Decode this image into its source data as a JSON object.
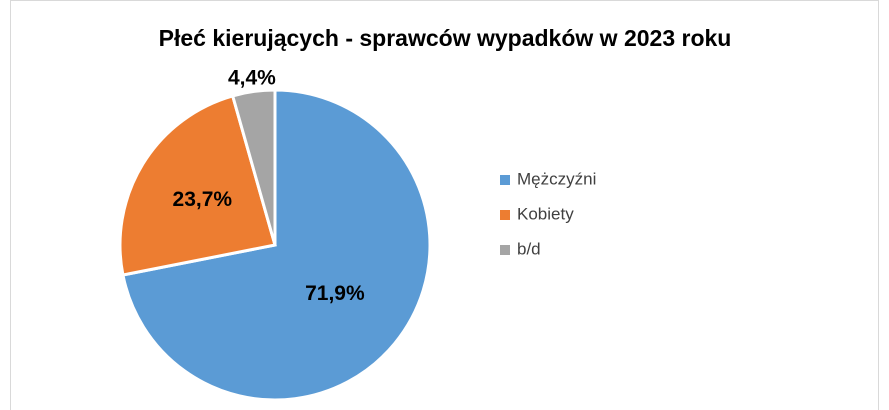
{
  "chart_data": {
    "type": "pie",
    "title": "Płeć kierujących - sprawców wypadków w 2023 roku",
    "categories": [
      "Mężczyźni",
      "Kobiety",
      "b/d"
    ],
    "values": [
      71.9,
      23.7,
      4.4
    ],
    "value_labels": [
      "71,9%",
      "23,7%",
      "4,4%"
    ],
    "colors": [
      "#5b9bd5",
      "#ed7d31",
      "#a5a5a5"
    ],
    "legend": "right"
  }
}
